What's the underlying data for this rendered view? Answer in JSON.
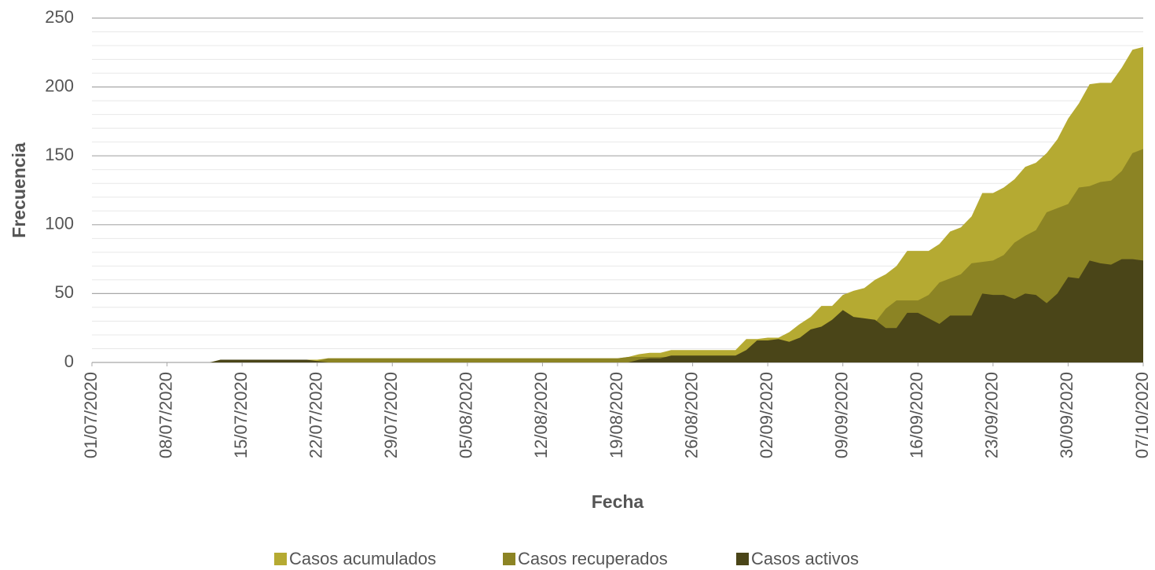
{
  "chart_data": {
    "type": "area",
    "xlabel": "Fecha",
    "ylabel": "Frecuencia",
    "categories": [
      "01/07/2020",
      null,
      null,
      null,
      null,
      null,
      null,
      "08/07/2020",
      null,
      null,
      null,
      null,
      null,
      null,
      "15/07/2020",
      null,
      null,
      null,
      null,
      null,
      null,
      "22/07/2020",
      null,
      null,
      null,
      null,
      null,
      null,
      "29/07/2020",
      null,
      null,
      null,
      null,
      null,
      null,
      "05/08/2020",
      null,
      null,
      null,
      null,
      null,
      null,
      "12/08/2020",
      null,
      null,
      null,
      null,
      null,
      null,
      "19/08/2020",
      null,
      null,
      null,
      null,
      null,
      null,
      "26/08/2020",
      null,
      null,
      null,
      null,
      null,
      null,
      "02/09/2020",
      null,
      null,
      null,
      null,
      null,
      null,
      "09/09/2020",
      null,
      null,
      null,
      null,
      null,
      null,
      "16/09/2020",
      null,
      null,
      null,
      null,
      null,
      null,
      "23/09/2020",
      null,
      null,
      null,
      null,
      null,
      null,
      "30/09/2020",
      null,
      null,
      null,
      null,
      null,
      null,
      "07/10/2020"
    ],
    "series": [
      {
        "name": "Casos acumulados",
        "color": "#b5aa32",
        "values": [
          0,
          0,
          0,
          0,
          0,
          0,
          0,
          0,
          0,
          0,
          0,
          0,
          2,
          2,
          2,
          2,
          2,
          2,
          2,
          2,
          2,
          2,
          3,
          3,
          3,
          3,
          3,
          3,
          3,
          3,
          3,
          3,
          3,
          3,
          3,
          3,
          3,
          3,
          3,
          3,
          3,
          3,
          3,
          3,
          3,
          3,
          3,
          3,
          3,
          3,
          4,
          6,
          7,
          7,
          9,
          9,
          9,
          9,
          9,
          9,
          9,
          17,
          17,
          18,
          18,
          22,
          28,
          33,
          41,
          41,
          49,
          52,
          54,
          60,
          64,
          70,
          81,
          81,
          81,
          86,
          95,
          98,
          106,
          123,
          123,
          127,
          133,
          142,
          145,
          152,
          162,
          177,
          188,
          202,
          203,
          203,
          214,
          227,
          229
        ]
      },
      {
        "name": "Casos recuperados",
        "color": "#8c8424",
        "values": [
          0,
          0,
          0,
          0,
          0,
          0,
          0,
          0,
          0,
          0,
          0,
          0,
          0,
          0,
          0,
          0,
          0,
          0,
          0,
          0,
          0,
          1,
          3,
          3,
          3,
          3,
          3,
          3,
          3,
          3,
          3,
          3,
          3,
          3,
          3,
          3,
          3,
          3,
          3,
          3,
          3,
          3,
          3,
          3,
          3,
          3,
          3,
          3,
          3,
          3,
          4,
          4,
          4,
          4,
          4,
          4,
          4,
          4,
          4,
          4,
          4,
          8,
          1,
          2,
          1,
          7,
          10,
          9,
          15,
          10,
          11,
          19,
          22,
          29,
          39,
          45,
          45,
          45,
          49,
          58,
          61,
          64,
          72,
          73,
          74,
          78,
          87,
          92,
          96,
          109,
          112,
          115,
          127,
          128,
          131,
          132,
          139,
          152,
          155
        ]
      },
      {
        "name": "Casos activos",
        "color": "#4a4518",
        "values": [
          0,
          0,
          0,
          0,
          0,
          0,
          0,
          0,
          0,
          0,
          0,
          0,
          2,
          2,
          2,
          2,
          2,
          2,
          2,
          2,
          2,
          1,
          0,
          0,
          0,
          0,
          0,
          0,
          0,
          0,
          0,
          0,
          0,
          0,
          0,
          0,
          0,
          0,
          0,
          0,
          0,
          0,
          0,
          0,
          0,
          0,
          0,
          0,
          0,
          0,
          0,
          2,
          3,
          3,
          5,
          5,
          5,
          5,
          5,
          5,
          5,
          9,
          16,
          16,
          17,
          15,
          18,
          24,
          26,
          31,
          38,
          33,
          32,
          31,
          25,
          25,
          36,
          36,
          32,
          28,
          34,
          34,
          34,
          50,
          49,
          49,
          46,
          50,
          49,
          43,
          50,
          62,
          61,
          74,
          72,
          71,
          75,
          75,
          74
        ]
      }
    ],
    "ylim": [
      0,
      250
    ],
    "yticks": [
      0,
      50,
      100,
      150,
      200,
      250
    ],
    "yminorticks": [
      10,
      20,
      30,
      40,
      60,
      70,
      80,
      90,
      110,
      120,
      130,
      140,
      160,
      170,
      180,
      190,
      210,
      220,
      230,
      240
    ],
    "grid": true,
    "legend": "bottom"
  }
}
